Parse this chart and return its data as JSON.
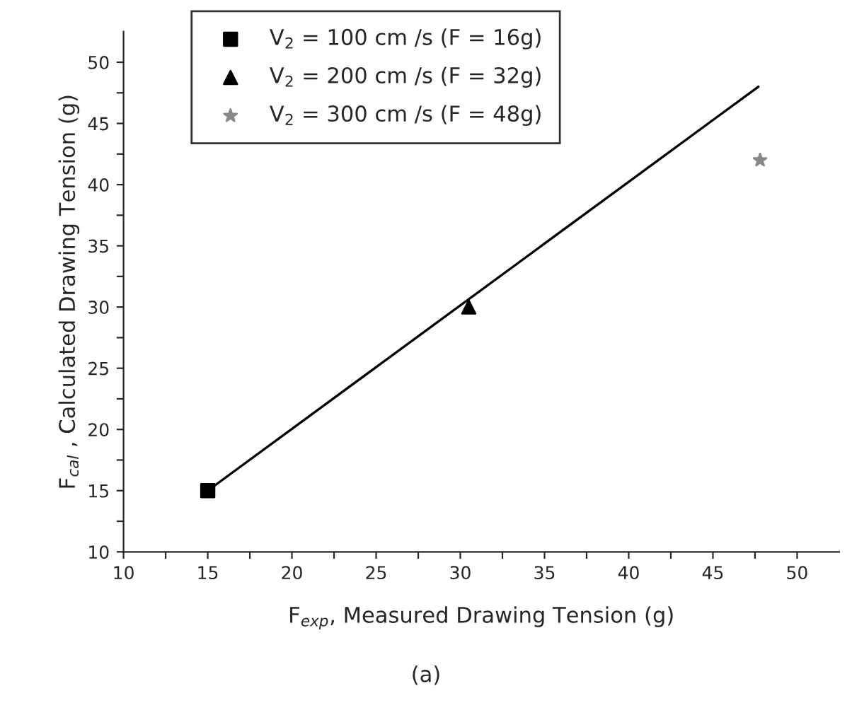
{
  "chart_data": {
    "type": "scatter",
    "xlabel": "F$_{exp}$, Measured Drawing Tension (g)",
    "ylabel": "F$_{cal}$ , Calculated Drawing Tension (g)",
    "annotations": [
      "(a)"
    ],
    "series": [
      {
        "name": "V$_{2}$ = 100 cm /s (F = 16g)",
        "color": "#000000",
        "marker": "square",
        "x": [
          15
        ],
        "values": [
          15
        ]
      },
      {
        "name": "V$_{2}$ = 200 cm /s (F = 32g)",
        "color": "#000000",
        "marker": "triangle",
        "x": [
          30.5
        ],
        "values": [
          30
        ]
      },
      {
        "name": "V$_{2}$ = 300 cm /s (F = 48g)",
        "color": "#888888",
        "marker": "star",
        "x": [
          47.8
        ],
        "values": [
          42
        ]
      },
      {
        "type": "line",
        "color": "#000000",
        "marker": "none",
        "x": [
          15,
          47.7
        ],
        "values": [
          15,
          48
        ]
      }
    ],
    "xlim": [
      10,
      52.5
    ],
    "ylim": [
      10,
      52.5
    ],
    "xticks": [
      10,
      {
        "value": 12.5,
        "label": null
      },
      15,
      {
        "value": 17.5,
        "label": null
      },
      20,
      {
        "value": 22.5,
        "label": null
      },
      25,
      {
        "value": 27.5,
        "label": null
      },
      30,
      {
        "value": 32.5,
        "label": null
      },
      35,
      {
        "value": 37.5,
        "label": null
      },
      40,
      {
        "value": 42.5,
        "label": null
      },
      45,
      {
        "value": 47.5,
        "label": null
      },
      50
    ],
    "yticks": [
      10,
      {
        "value": 12.5,
        "label": null
      },
      15,
      {
        "value": 17.5,
        "label": null
      },
      20,
      {
        "value": 22.5,
        "label": null
      },
      25,
      {
        "value": 27.5,
        "label": null
      },
      30,
      {
        "value": 32.5,
        "label": null
      },
      35,
      {
        "value": 37.5,
        "label": null
      },
      40,
      {
        "value": 42.5,
        "label": null
      },
      45,
      {
        "value": 47.5,
        "label": null
      },
      50
    ],
    "grid": false,
    "legend": "top left"
  }
}
